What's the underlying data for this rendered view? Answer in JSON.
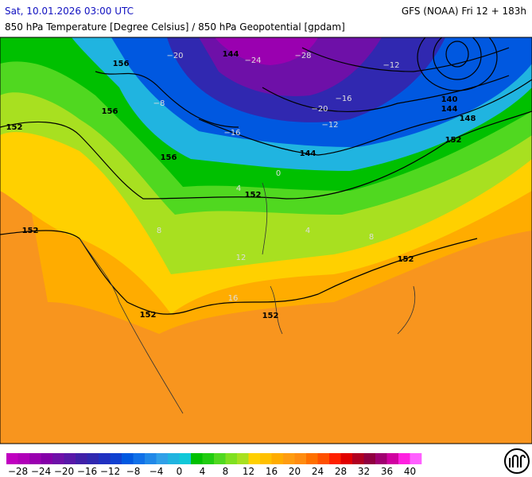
{
  "header": {
    "valid_time": "Sat, 10.01.2026 03:00 UTC",
    "model_run": "GFS (NOAA) Fri 12 + 183h",
    "title": "850 hPa Temperature [Degree Celsius] / 850 hPa Geopotential [gpdam]"
  },
  "map": {
    "contour_labels": [
      "152",
      "152",
      "152",
      "152",
      "152",
      "152",
      "152",
      "156",
      "156",
      "156",
      "144",
      "144",
      "148",
      "140",
      "144",
      "−28",
      "−24",
      "−20",
      "−16",
      "−12",
      "−8",
      "0",
      "4",
      "8",
      "12",
      "16",
      "−20",
      "−16",
      "−12",
      "4",
      "8"
    ]
  },
  "colorbar": {
    "colors": [
      "#c000c0",
      "#b000b8",
      "#9a00b0",
      "#8400a8",
      "#6e10a8",
      "#5818a8",
      "#4020a8",
      "#3028b0",
      "#2030c0",
      "#1040d0",
      "#0058e0",
      "#1070e8",
      "#2088e8",
      "#30a0e8",
      "#20b4e0",
      "#10c8d8",
      "#00c000",
      "#20cc10",
      "#50d820",
      "#80e020",
      "#a8e020",
      "#ffd000",
      "#ffc000",
      "#ffac00",
      "#ff9c10",
      "#ff8c10",
      "#ff7000",
      "#ff5000",
      "#ff2000",
      "#e00000",
      "#b00020",
      "#900040",
      "#a00070",
      "#d000a0",
      "#ff20e0",
      "#ff60ff"
    ],
    "labels": [
      "−28",
      "−24",
      "−20",
      "−16",
      "−12",
      "−8",
      "−4",
      "0",
      "4",
      "8",
      "12",
      "16",
      "20",
      "24",
      "28",
      "32",
      "36",
      "40"
    ]
  }
}
